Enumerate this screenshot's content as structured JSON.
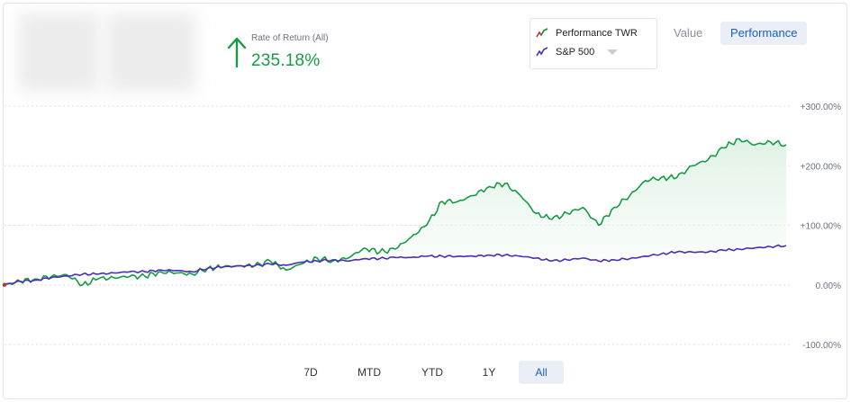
{
  "summary": {
    "rate_label": "Rate of Return (All)",
    "rate_value": "235.18%"
  },
  "legend": {
    "items": [
      {
        "label": "Performance TWR",
        "color": "#179b45"
      },
      {
        "label": "S&P 500",
        "color": "#4d2fb2"
      }
    ]
  },
  "view_toggle": {
    "value_label": "Value",
    "performance_label": "Performance",
    "active": "Performance"
  },
  "ranges": {
    "items": [
      "7D",
      "MTD",
      "YTD",
      "1Y",
      "All"
    ],
    "active": "All"
  },
  "colors": {
    "performance": "#179b45",
    "benchmark": "#4d2fb2",
    "grid": "#d9dee6",
    "fill": "#e7f5ea"
  },
  "chart_data": {
    "type": "line",
    "ylim": [
      -100,
      300
    ],
    "yticks": [
      "+300.00%",
      "+200.00%",
      "+100.00%",
      "0.00%",
      "-100.00%"
    ],
    "ytick_values": [
      300,
      200,
      100,
      0,
      -100
    ],
    "grid": true,
    "x": [
      0,
      2,
      4,
      6,
      8,
      10,
      12,
      14,
      16,
      18,
      20,
      22,
      24,
      26,
      28,
      30,
      32,
      34,
      36,
      38,
      40,
      42,
      44,
      46,
      48,
      50,
      52,
      54,
      56,
      58,
      60,
      62,
      64,
      66,
      68,
      70,
      72,
      74,
      76,
      78,
      80,
      82,
      84,
      86,
      88,
      90,
      92,
      94,
      96,
      98,
      100
    ],
    "series": [
      {
        "name": "Performance TWR",
        "values": [
          0,
          6,
          10,
          14,
          17,
          0,
          10,
          12,
          14,
          14,
          22,
          20,
          18,
          28,
          30,
          32,
          32,
          40,
          25,
          35,
          45,
          40,
          45,
          62,
          55,
          60,
          80,
          100,
          140,
          140,
          150,
          165,
          170,
          150,
          120,
          110,
          120,
          130,
          100,
          130,
          150,
          175,
          180,
          180,
          200,
          210,
          230,
          245,
          235,
          240,
          235.18
        ]
      },
      {
        "name": "S&P 500",
        "values": [
          0,
          6,
          8,
          12,
          15,
          18,
          18,
          20,
          22,
          22,
          25,
          24,
          22,
          28,
          30,
          32,
          32,
          35,
          33,
          38,
          40,
          42,
          40,
          44,
          44,
          46,
          46,
          48,
          48,
          48,
          48,
          50,
          50,
          48,
          45,
          40,
          42,
          45,
          40,
          42,
          44,
          48,
          52,
          55,
          55,
          55,
          58,
          60,
          62,
          64,
          66
        ]
      }
    ],
    "xlabel": "",
    "ylabel": ""
  }
}
